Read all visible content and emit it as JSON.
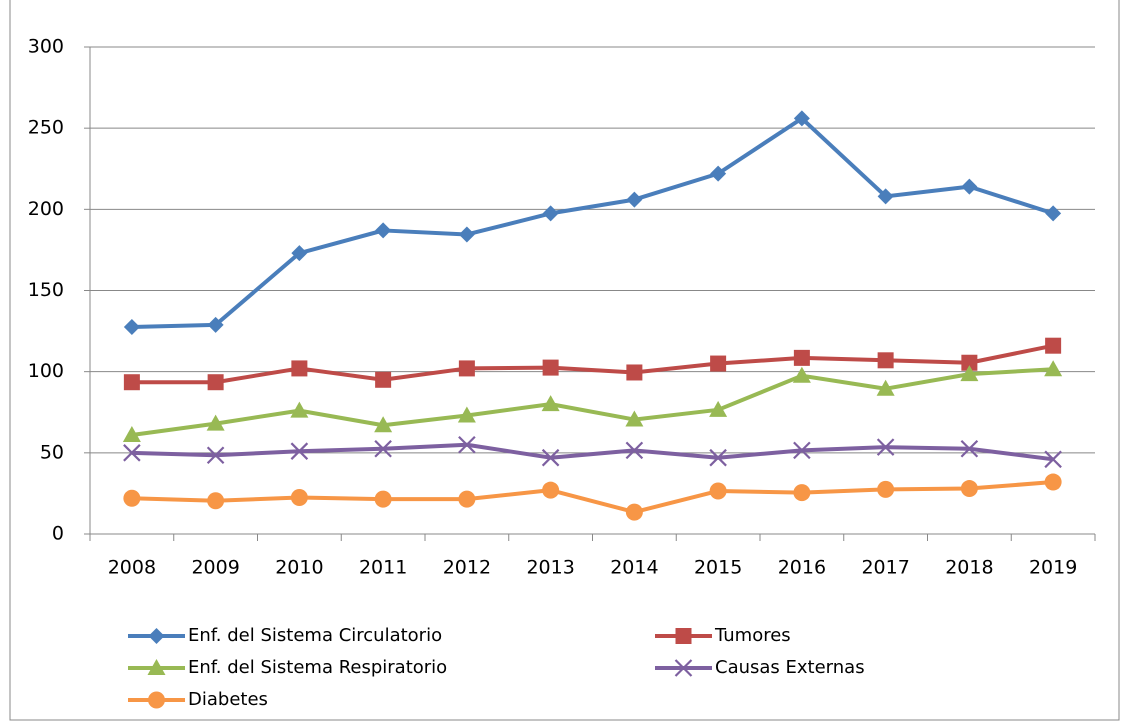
{
  "chart_data": {
    "type": "line",
    "categories": [
      "2008",
      "2009",
      "2010",
      "2011",
      "2012",
      "2013",
      "2014",
      "2015",
      "2016",
      "2017",
      "2018",
      "2019"
    ],
    "series": [
      {
        "name": "Enf. del Sistema Circulatorio",
        "color": "#4a7ebb",
        "marker": "diamond",
        "values": [
          127.5,
          128.8,
          173,
          187,
          184.5,
          197.5,
          206,
          222,
          256,
          208,
          214,
          197.5
        ]
      },
      {
        "name": "Tumores",
        "color": "#be4b48",
        "marker": "square",
        "values": [
          93.5,
          93.5,
          102,
          95,
          102,
          102.5,
          99.5,
          105,
          108.5,
          107,
          105.5,
          116
        ]
      },
      {
        "name": "Enf. del Sistema Respiratorio",
        "color": "#98b954",
        "marker": "triangle",
        "values": [
          61,
          68,
          76,
          67,
          73,
          80,
          70.5,
          76.5,
          97.5,
          89.5,
          98.5,
          101.5
        ]
      },
      {
        "name": "Causas Externas",
        "color": "#7d60a0",
        "marker": "x",
        "values": [
          50,
          48.5,
          51,
          52.5,
          55,
          47,
          51.5,
          47,
          51.5,
          53.5,
          52.5,
          46
        ]
      },
      {
        "name": "Diabetes",
        "color": "#f79646",
        "marker": "circle",
        "values": [
          22,
          20.5,
          22.5,
          21.5,
          21.5,
          27,
          13.5,
          26.5,
          25.5,
          27.5,
          28,
          32
        ]
      }
    ],
    "ylim": [
      0,
      300
    ],
    "yticks": [
      0,
      50,
      100,
      150,
      200,
      250,
      300
    ],
    "grid": true,
    "legend": "bottom"
  }
}
